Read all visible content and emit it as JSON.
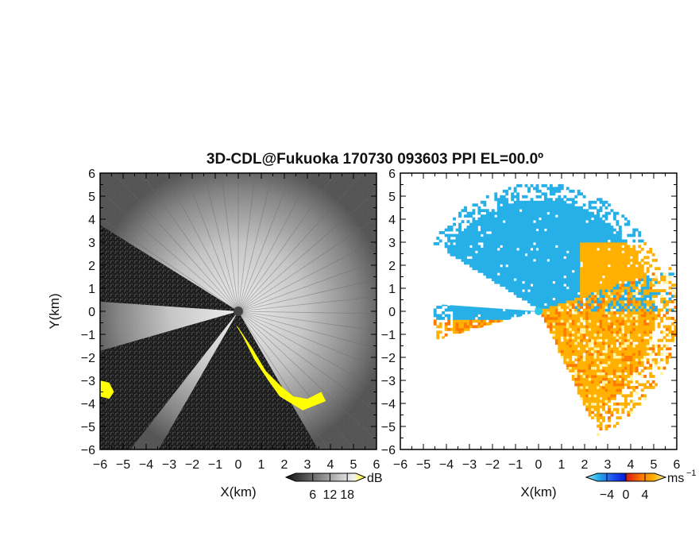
{
  "figure": {
    "title": "3D-CDL@Fukuoka 170730 093603 PPI EL=00.0º"
  },
  "chart_data": [
    {
      "type": "heatmap",
      "panel": "left",
      "quantity": "SNR",
      "xlabel": "X(km)",
      "ylabel": "Y(km)",
      "xlim": [
        -6,
        6
      ],
      "ylim": [
        -6,
        6
      ],
      "xticks": [
        -6,
        -5,
        -4,
        -3,
        -2,
        -1,
        0,
        1,
        2,
        3,
        4,
        5,
        6
      ],
      "yticks": [
        6,
        5,
        4,
        3,
        2,
        1,
        0,
        -1,
        -2,
        -3,
        -4,
        -5,
        -6
      ],
      "xtick_labels": [
        "−6",
        "−5",
        "−4",
        "−3",
        "−2",
        "−1",
        "0",
        "1",
        "2",
        "3",
        "4",
        "5",
        "6"
      ],
      "ytick_labels": [
        "6",
        "5",
        "4",
        "3",
        "2",
        "1",
        "0",
        "−1",
        "−2",
        "−3",
        "−4",
        "−5",
        "−6"
      ],
      "colorbar": {
        "unit": "dB",
        "ticks": [
          6,
          12,
          18
        ],
        "tick_labels": [
          "6",
          "12",
          "18"
        ],
        "range": [
          0,
          21
        ],
        "colors": [
          "#111111",
          "#ffffff",
          "#ffff00"
        ]
      },
      "blocked_sectors": [
        {
          "from_deg": 148,
          "to_deg": 176
        },
        {
          "from_deg": 196,
          "to_deg": 232
        }
      ],
      "high_snr_regions": [
        {
          "name": "south-east edge",
          "color": "#ffff00"
        },
        {
          "name": "west edge",
          "color": "#ffff00"
        }
      ]
    },
    {
      "type": "heatmap",
      "panel": "right",
      "quantity": "Doppler velocity",
      "xlabel": "X(km)",
      "xlim": [
        -6,
        6
      ],
      "ylim": [
        -6,
        6
      ],
      "xticks": [
        -6,
        -5,
        -4,
        -3,
        -2,
        -1,
        0,
        1,
        2,
        3,
        4,
        5,
        6
      ],
      "yticks": [
        6,
        5,
        4,
        3,
        2,
        1,
        0,
        -1,
        -2,
        -3,
        -4,
        -5,
        -6
      ],
      "xtick_labels": [
        "−6",
        "−5",
        "−4",
        "−3",
        "−2",
        "−1",
        "0",
        "1",
        "2",
        "3",
        "4",
        "5",
        "6"
      ],
      "ytick_labels": [
        "6",
        "5",
        "4",
        "3",
        "2",
        "1",
        "0",
        "−1",
        "−2",
        "−3",
        "−4",
        "−5",
        "−6"
      ],
      "colorbar": {
        "unit": "ms",
        "unit_exponent": "−1",
        "ticks": [
          -4,
          0,
          4
        ],
        "tick_labels": [
          "−4",
          "0",
          "4"
        ],
        "range": [
          -6,
          6
        ],
        "colors": [
          "#a0e8ff",
          "#27b0e8",
          "#1a4cf0",
          "#0a1fd0",
          "#d81e14",
          "#ff7a00",
          "#ffb000",
          "#fff3a0"
        ]
      },
      "regions": [
        {
          "direction": "north-west",
          "sign": "negative",
          "approx_value": -4
        },
        {
          "direction": "east/south-east",
          "sign": "positive",
          "approx_value": 4
        },
        {
          "direction": "west/south-west",
          "sign": "positive",
          "approx_value": 3
        }
      ]
    }
  ]
}
